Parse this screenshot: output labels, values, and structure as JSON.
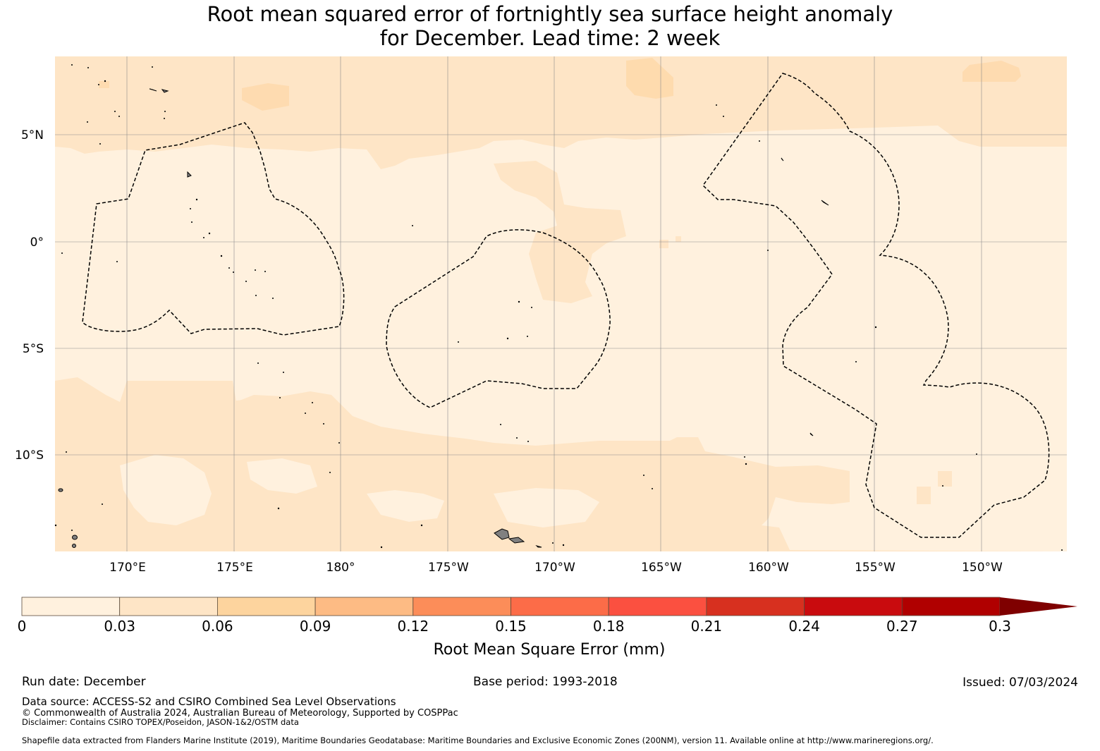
{
  "title": {
    "line1": "Root mean squared error of fortnightly sea surface height anomaly",
    "line2": "for December. Lead time: 2 week"
  },
  "map": {
    "lat_labels": [
      "5°N",
      "0°",
      "5°S",
      "10°S"
    ],
    "lon_labels": [
      "170°E",
      "175°E",
      "180°",
      "175°W",
      "170°W",
      "165°W",
      "160°W",
      "155°W",
      "150°W"
    ],
    "colors": {
      "land": "#808080",
      "eez_line": "#000000",
      "grid": "#8c8c8c"
    }
  },
  "colorbar": {
    "label": "Root Mean Square Error (mm)",
    "ticks": [
      "0",
      "0.03",
      "0.06",
      "0.09",
      "0.12",
      "0.15",
      "0.18",
      "0.21",
      "0.24",
      "0.27",
      "0.3"
    ],
    "colors": [
      "#fff1de",
      "#fee5c6",
      "#fdd49e",
      "#fdbb84",
      "#fc8d59",
      "#fc6c48",
      "#fb5040",
      "#d7301f",
      "#c90b0e",
      "#b00000"
    ],
    "extend_color": "#7f0000"
  },
  "chart_data": {
    "type": "heatmap",
    "title": "Root mean squared error of fortnightly sea surface height anomaly for December. Lead time: 2 week",
    "variable": "Root Mean Square Error (mm)",
    "value_range": [
      0,
      0.3
    ],
    "bins": [
      0,
      0.03,
      0.06,
      0.09,
      0.12,
      0.15,
      0.18,
      0.21,
      0.24,
      0.27,
      0.3
    ],
    "extend": "max",
    "lon_ticks_deg_east": [
      170,
      175,
      180,
      185,
      190,
      195,
      200,
      205,
      210
    ],
    "lat_ticks_deg": [
      5,
      0,
      -5,
      -10
    ],
    "lon_range_deg_east": [
      166.6,
      214
    ],
    "lat_range_deg": [
      -14.5,
      8.7
    ],
    "value_regions": [
      {
        "bin": "0.03-0.06",
        "area": "north of ~4.5°N across the domain"
      },
      {
        "bin": "0.06-0.09",
        "area": "small patches near 173°E 7°N, 164°W 7.5°N, 150°W 8°N"
      },
      {
        "bin": "0.03-0.06",
        "area": "southwest and south-central areas below ~6°S, near-equator tongue 172°W-167°W"
      },
      {
        "bin": "0-0.03",
        "area": "remaining central tropical band"
      }
    ]
  },
  "footer": {
    "run_date": "Run date: December",
    "base_period": "Base period: 1993-2018",
    "issued": "Issued: 07/03/2024",
    "data_source": "Data source: ACCESS-S2 and CSIRO Combined Sea Level Observations",
    "copyright": "© Commonwealth of Australia 2024, Australian Bureau of Meteorology, Supported by COSPPac",
    "disclaimer": "Disclaimer: Contains CSIRO TOPEX/Poseidon, JASON-1&2/OSTM data",
    "shapefile": "Shapefile data extracted from Flanders Marine Institute (2019), Maritime Boundaries Geodatabase: Maritime Boundaries and Exclusive Economic Zones (200NM), version 11. Available online at http://www.marineregions.org/."
  }
}
